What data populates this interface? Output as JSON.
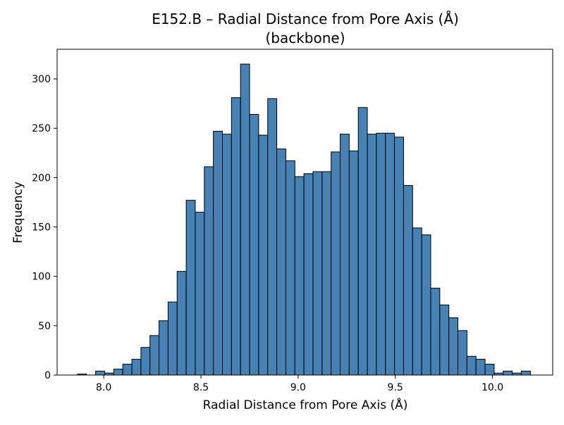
{
  "chart_data": {
    "type": "bar",
    "title_line1": "E152.B – Radial Distance from Pore Axis (Å)",
    "title_line2": "(backbone)",
    "xlabel": "Radial Distance from Pore Axis (Å)",
    "ylabel": "Frequency",
    "xlim": [
      7.76,
      10.31
    ],
    "ylim": [
      0,
      330
    ],
    "xticks": [
      8.0,
      8.5,
      9.0,
      9.5,
      10.0
    ],
    "xtick_labels": [
      "8.0",
      "8.5",
      "9.0",
      "9.5",
      "10.0"
    ],
    "yticks": [
      0,
      50,
      100,
      150,
      200,
      250,
      300
    ],
    "ytick_labels": [
      "0",
      "50",
      "100",
      "150",
      "200",
      "250",
      "300"
    ],
    "grid": false,
    "bin_start": 7.865,
    "bin_width": 0.0466,
    "values": [
      1,
      0,
      4,
      2,
      6,
      11,
      16,
      28,
      40,
      55,
      74,
      105,
      177,
      165,
      211,
      247,
      244,
      281,
      315,
      264,
      243,
      280,
      229,
      217,
      201,
      204,
      206,
      206,
      226,
      244,
      227,
      271,
      244,
      245,
      245,
      241,
      192,
      149,
      142,
      88,
      71,
      58,
      45,
      19,
      16,
      11,
      2,
      4,
      2,
      4
    ],
    "bar_color": "#4682b4",
    "edge_color": "#000000"
  }
}
